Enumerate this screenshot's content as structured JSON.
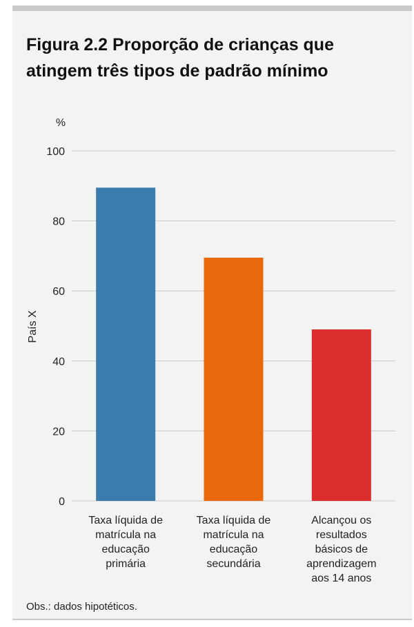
{
  "title": "Figura 2.2 Proporção de crianças que atingem três tipos de padrão mínimo",
  "note": "Obs.: dados hipotéticos.",
  "chart_data": {
    "type": "bar",
    "title": "Figura 2.2 Proporção de crianças que atingem três tipos de padrão mínimo",
    "unit_label": "%",
    "ylabel": "País X",
    "xlabel": "",
    "ylim": [
      0,
      100
    ],
    "yticks": [
      0,
      20,
      40,
      60,
      80,
      100
    ],
    "grid": true,
    "legend": "none",
    "categories": [
      [
        "Taxa líquida de",
        "matrícula na",
        "educação",
        "primária"
      ],
      [
        "Taxa líquida de",
        "matrícula na",
        "educação",
        "secundária"
      ],
      [
        "Alcançou os",
        "resultados",
        "básicos de",
        "aprendizagem",
        "aos 14 anos"
      ]
    ],
    "values": [
      89.5,
      69.5,
      49
    ],
    "colors": [
      "#3a7cae",
      "#ea690f",
      "#dd2e2e"
    ],
    "grid_color": "#c8c8c8"
  }
}
